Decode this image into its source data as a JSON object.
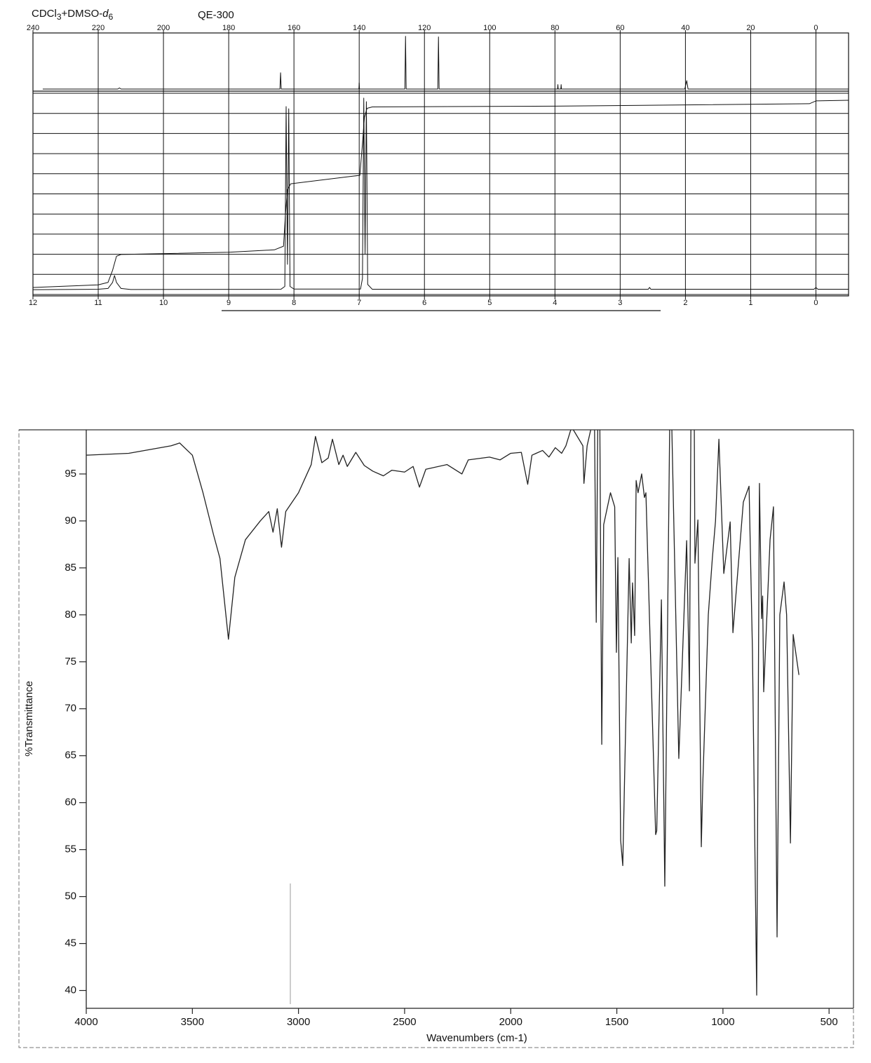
{
  "chart_data": [
    {
      "type": "line",
      "solvent": [
        "CDCl",
        "3",
        "+DMSO-",
        "d",
        "6"
      ],
      "instrument": "QE-300",
      "xlim": [
        12,
        -0.5
      ],
      "xticks": [
        12,
        11,
        10,
        9,
        8,
        7,
        6,
        5,
        4,
        3,
        2,
        1,
        0
      ],
      "x2lim": [
        240,
        -10
      ],
      "x2ticks": [
        240,
        220,
        200,
        180,
        160,
        140,
        120,
        100,
        80,
        60,
        40,
        20,
        0
      ],
      "ylim": [
        0,
        100
      ],
      "yticks": [
        0,
        10,
        20,
        30,
        40,
        50,
        60,
        70,
        80,
        90,
        100
      ],
      "y2lim": [
        0,
        100
      ],
      "grid": true,
      "series": [
        {
          "color": "#111111",
          "axis": "y2",
          "x_axis": "x2",
          "x": [
            237,
            214,
            213.5,
            213,
            164.3,
            164.1,
            163.9,
            140.1,
            140,
            139.9,
            126,
            125.8,
            125.6,
            115.9,
            115.7,
            115.5,
            79.2,
            79.1,
            79,
            78.2,
            78.1,
            78,
            40.2,
            39.6,
            39.2,
            -10
          ],
          "values": [
            0,
            0,
            2,
            0,
            0,
            29,
            0,
            0,
            11,
            0,
            0,
            94,
            0,
            0,
            93,
            0,
            0,
            8,
            0,
            0,
            8,
            0,
            0,
            15,
            0,
            0
          ]
        },
        {
          "color": "#111111",
          "x": [
            12,
            11,
            10.85,
            10.78,
            10.75,
            10.72,
            10.65,
            10.5,
            8.2,
            8.14,
            8.12,
            8.1,
            8.08,
            8.06,
            8.0,
            6.98,
            6.95,
            6.93,
            6.91,
            6.89,
            6.87,
            6.8,
            2.57,
            2.55,
            2.53,
            0.03,
            0,
            -0.03,
            -0.5
          ],
          "values": [
            2.4,
            2.6,
            3,
            6,
            9.4,
            6,
            3,
            2.5,
            2.6,
            4,
            93.4,
            15,
            92.3,
            4,
            2.7,
            2.7,
            8,
            97.6,
            20,
            95.8,
            5,
            2.6,
            2.6,
            3.5,
            2.6,
            2.6,
            3.5,
            2.6,
            2.6
          ]
        },
        {
          "color": "#111111",
          "x": [
            12,
            11,
            10.85,
            10.78,
            10.72,
            10.65,
            9,
            8.3,
            8.16,
            8.13,
            8.1,
            8.05,
            7.1,
            6.99,
            6.95,
            6.92,
            6.88,
            6.8,
            4,
            2,
            0.1,
            0,
            -0.5
          ],
          "values": [
            3.5,
            4.8,
            6,
            12,
            19,
            19.9,
            21,
            22.2,
            24,
            40,
            52,
            55,
            58.8,
            59.2,
            75,
            88,
            92.5,
            93.2,
            93.6,
            94.2,
            94.8,
            96.2,
            96.5
          ]
        }
      ]
    },
    {
      "type": "line",
      "ylabel": "%Transmittance",
      "xlabel": "Wavenumbers (cm-1)",
      "xlim": [
        4000,
        385
      ],
      "xticks": [
        4000,
        3500,
        3000,
        2500,
        2000,
        1500,
        1000,
        500
      ],
      "ylim": [
        38.1,
        99.7
      ],
      "yticks": [
        40,
        45,
        50,
        55,
        60,
        65,
        70,
        75,
        80,
        85,
        90,
        95
      ],
      "series": [
        {
          "color": "#222222",
          "x": [
            4000,
            3800,
            3600,
            3560,
            3500,
            3450,
            3400,
            3370,
            3330,
            3300,
            3250,
            3180,
            3140,
            3120,
            3100,
            3080,
            3060,
            3000,
            2960,
            2940,
            2920,
            2890,
            2860,
            2840,
            2810,
            2790,
            2770,
            2730,
            2690,
            2650,
            2600,
            2560,
            2500,
            2460,
            2430,
            2400,
            2300,
            2230,
            2200,
            2100,
            2050,
            2000,
            1950,
            1920,
            1900,
            1850,
            1820,
            1790,
            1760,
            1740,
            1713,
            1660,
            1655,
            1640,
            1620,
            1605,
            1597,
            1590,
            1580,
            1571,
            1562,
            1530,
            1510,
            1502,
            1495,
            1482,
            1472,
            1442,
            1432,
            1426,
            1416,
            1409,
            1400,
            1383,
            1370,
            1363,
            1317,
            1312,
            1290,
            1274,
            1251,
            1241,
            1208,
            1171,
            1158,
            1151,
            1135,
            1132,
            1118,
            1102,
            1095,
            1069,
            1050,
            1035,
            1019,
            996,
            966,
            953,
            904,
            877,
            861,
            841,
            828,
            818,
            813,
            808,
            778,
            762,
            745,
            732,
            712,
            700,
            682,
            669,
            642
          ],
          "values": [
            97.0,
            97.2,
            98.0,
            98.3,
            97.0,
            93.0,
            88.5,
            86.0,
            77.4,
            84.0,
            88.0,
            90.0,
            91.0,
            88.8,
            91.3,
            87.2,
            91.0,
            93.0,
            95.0,
            96.0,
            99.0,
            96.2,
            96.7,
            98.7,
            96.0,
            97.0,
            95.8,
            97.3,
            95.9,
            95.3,
            94.8,
            95.4,
            95.2,
            95.8,
            93.6,
            95.5,
            96.0,
            95.0,
            96.5,
            96.8,
            96.5,
            97.2,
            97.3,
            93.9,
            97.0,
            97.5,
            96.8,
            97.8,
            97.2,
            98.0,
            100,
            98.0,
            94.0,
            98.0,
            100,
            100,
            79.2,
            100,
            100,
            66.2,
            89.6,
            93.0,
            91.5,
            76.0,
            86.1,
            56.0,
            53.3,
            86.0,
            77.0,
            83.4,
            77.8,
            94.3,
            93.0,
            95.0,
            92.5,
            93.0,
            56.6,
            57.0,
            81.6,
            51.1,
            100,
            100,
            64.7,
            87.9,
            71.9,
            100,
            100,
            85.5,
            90.1,
            55.3,
            62.0,
            80.0,
            86.0,
            90.0,
            98.7,
            84.4,
            89.9,
            78.1,
            92.0,
            93.7,
            76.2,
            39.5,
            94.0,
            79.6,
            82.0,
            71.8,
            88.0,
            91.5,
            45.7,
            80.0,
            83.5,
            80.0,
            55.7,
            77.9,
            73.6
          ]
        }
      ]
    }
  ]
}
